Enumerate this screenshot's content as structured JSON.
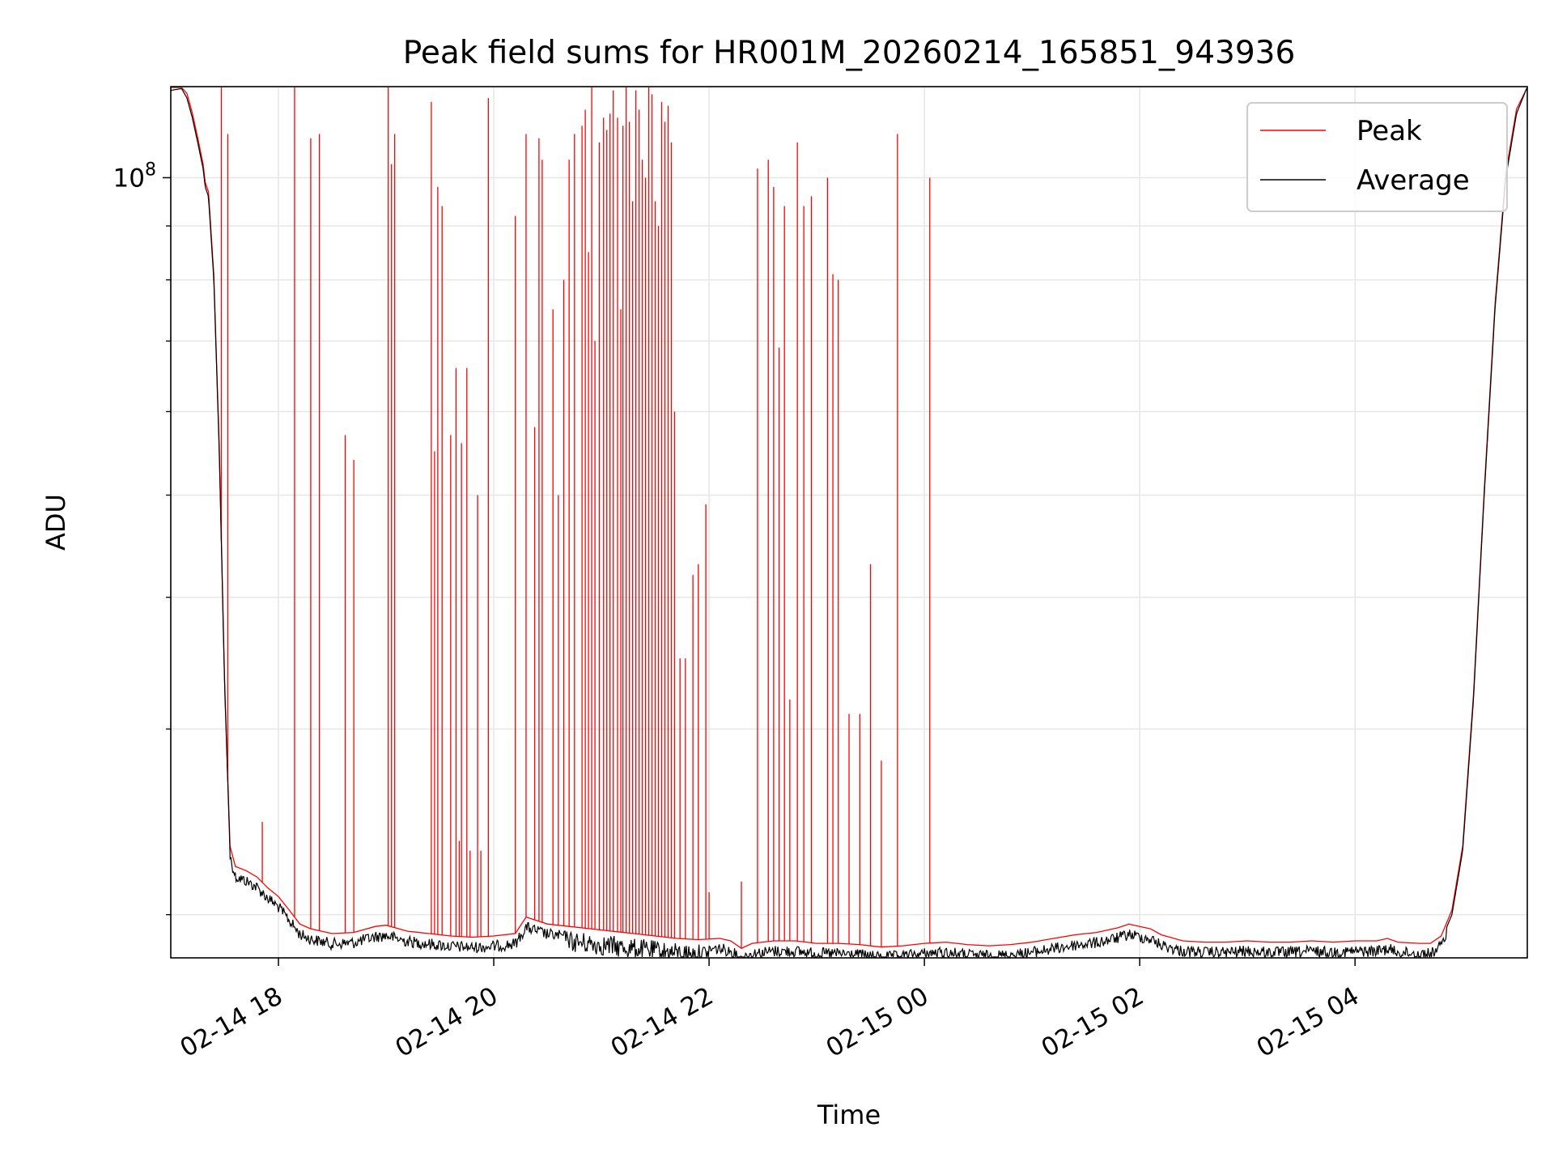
{
  "chart_data": {
    "type": "line",
    "title": "Peak field sums for HR001M_20260214_165851_943936",
    "xlabel": "Time",
    "ylabel": "ADU",
    "yscale": "log",
    "x_unit": "hours since 2026-02-14 00:00",
    "xlim": [
      17.0,
      29.6
    ],
    "ylim": [
      18200000,
      122000000
    ],
    "grid": true,
    "x_ticks": [
      {
        "value": 18,
        "label": "02-14 18"
      },
      {
        "value": 20,
        "label": "02-14 20"
      },
      {
        "value": 22,
        "label": "02-14 22"
      },
      {
        "value": 24,
        "label": "02-15 00"
      },
      {
        "value": 26,
        "label": "02-15 02"
      },
      {
        "value": 28,
        "label": "02-15 04"
      }
    ],
    "y_ticks_major": [
      {
        "value": 100000000,
        "base": "10",
        "exponent": "8"
      }
    ],
    "y_ticks_minor": [
      20000000,
      30000000,
      40000000,
      50000000,
      60000000,
      70000000,
      80000000,
      90000000
    ],
    "legend": {
      "position": "upper right",
      "entries": [
        {
          "label": "Peak",
          "color": "#ff0000"
        },
        {
          "label": "Average",
          "color": "#000000"
        }
      ]
    },
    "series": [
      {
        "name": "Average",
        "color": "#000000",
        "points": [
          [
            17.0,
            121000000
          ],
          [
            17.1,
            121500000
          ],
          [
            17.15,
            119000000
          ],
          [
            17.2,
            114000000
          ],
          [
            17.25,
            108000000
          ],
          [
            17.3,
            102000000
          ],
          [
            17.32,
            98000000
          ],
          [
            17.35,
            96000000
          ],
          [
            17.4,
            80000000
          ],
          [
            17.45,
            55000000
          ],
          [
            17.5,
            33000000
          ],
          [
            17.55,
            23000000
          ],
          [
            17.6,
            22000000
          ],
          [
            17.7,
            21800000
          ],
          [
            17.8,
            21500000
          ],
          [
            17.9,
            21000000
          ],
          [
            18.0,
            20600000
          ],
          [
            18.1,
            20000000
          ],
          [
            18.2,
            19400000
          ],
          [
            18.3,
            19200000
          ],
          [
            18.5,
            19000000
          ],
          [
            18.7,
            19050000
          ],
          [
            18.9,
            19300000
          ],
          [
            19.0,
            19350000
          ],
          [
            19.2,
            19100000
          ],
          [
            19.4,
            19000000
          ],
          [
            19.6,
            18900000
          ],
          [
            19.8,
            18850000
          ],
          [
            20.0,
            18900000
          ],
          [
            20.2,
            19000000
          ],
          [
            20.3,
            19700000
          ],
          [
            20.5,
            19400000
          ],
          [
            20.7,
            19300000
          ],
          [
            20.9,
            19200000
          ],
          [
            21.1,
            19100000
          ],
          [
            21.3,
            19000000
          ],
          [
            21.5,
            18900000
          ],
          [
            21.7,
            18800000
          ],
          [
            21.9,
            18750000
          ],
          [
            22.1,
            18800000
          ],
          [
            22.2,
            18700000
          ],
          [
            22.3,
            18400000
          ],
          [
            22.4,
            18600000
          ],
          [
            22.6,
            18700000
          ],
          [
            22.8,
            18700000
          ],
          [
            23.0,
            18600000
          ],
          [
            23.2,
            18600000
          ],
          [
            23.4,
            18550000
          ],
          [
            23.6,
            18450000
          ],
          [
            23.8,
            18500000
          ],
          [
            24.0,
            18600000
          ],
          [
            24.2,
            18650000
          ],
          [
            24.4,
            18550000
          ],
          [
            24.6,
            18500000
          ],
          [
            24.8,
            18550000
          ],
          [
            25.0,
            18650000
          ],
          [
            25.2,
            18800000
          ],
          [
            25.4,
            18950000
          ],
          [
            25.6,
            19050000
          ],
          [
            25.8,
            19250000
          ],
          [
            25.9,
            19400000
          ],
          [
            26.0,
            19300000
          ],
          [
            26.1,
            19200000
          ],
          [
            26.2,
            18950000
          ],
          [
            26.4,
            18700000
          ],
          [
            26.6,
            18650000
          ],
          [
            26.8,
            18650000
          ],
          [
            27.0,
            18700000
          ],
          [
            27.2,
            18650000
          ],
          [
            27.4,
            18650000
          ],
          [
            27.6,
            18700000
          ],
          [
            27.8,
            18650000
          ],
          [
            28.0,
            18700000
          ],
          [
            28.2,
            18700000
          ],
          [
            28.3,
            18800000
          ],
          [
            28.4,
            18650000
          ],
          [
            28.6,
            18600000
          ],
          [
            28.7,
            18600000
          ],
          [
            28.8,
            18900000
          ],
          [
            28.9,
            20000000
          ],
          [
            29.0,
            23000000
          ],
          [
            29.1,
            32000000
          ],
          [
            29.2,
            50000000
          ],
          [
            29.3,
            75000000
          ],
          [
            29.4,
            100000000
          ],
          [
            29.5,
            115000000
          ],
          [
            29.6,
            122000000
          ]
        ]
      },
      {
        "name": "Peak",
        "color": "#ff0000",
        "spikes": [
          [
            17.47,
            122000000
          ],
          [
            17.53,
            110000000
          ],
          [
            17.85,
            24500000
          ],
          [
            18.15,
            122000000
          ],
          [
            18.3,
            109000000
          ],
          [
            18.38,
            110000000
          ],
          [
            18.62,
            57000000
          ],
          [
            18.7,
            54000000
          ],
          [
            19.02,
            122000000
          ],
          [
            19.05,
            103000000
          ],
          [
            19.08,
            110000000
          ],
          [
            19.42,
            118000000
          ],
          [
            19.45,
            55000000
          ],
          [
            19.48,
            98000000
          ],
          [
            19.52,
            94000000
          ],
          [
            19.6,
            57000000
          ],
          [
            19.65,
            66000000
          ],
          [
            19.68,
            23500000
          ],
          [
            19.7,
            56000000
          ],
          [
            19.75,
            66000000
          ],
          [
            19.78,
            23000000
          ],
          [
            19.85,
            50000000
          ],
          [
            19.88,
            23000000
          ],
          [
            19.95,
            119000000
          ],
          [
            20.2,
            92000000
          ],
          [
            20.3,
            110000000
          ],
          [
            20.38,
            58000000
          ],
          [
            20.42,
            109000000
          ],
          [
            20.45,
            104000000
          ],
          [
            20.55,
            75000000
          ],
          [
            20.6,
            50000000
          ],
          [
            20.65,
            80000000
          ],
          [
            20.7,
            104000000
          ],
          [
            20.75,
            110000000
          ],
          [
            20.82,
            112000000
          ],
          [
            20.85,
            116000000
          ],
          [
            20.88,
            85000000
          ],
          [
            20.91,
            122000000
          ],
          [
            20.94,
            70000000
          ],
          [
            20.98,
            108000000
          ],
          [
            21.02,
            114000000
          ],
          [
            21.05,
            111000000
          ],
          [
            21.08,
            115000000
          ],
          [
            21.11,
            121000000
          ],
          [
            21.15,
            114000000
          ],
          [
            21.18,
            75000000
          ],
          [
            21.2,
            112000000
          ],
          [
            21.23,
            122000000
          ],
          [
            21.26,
            113000000
          ],
          [
            21.29,
            95000000
          ],
          [
            21.32,
            121000000
          ],
          [
            21.35,
            116000000
          ],
          [
            21.38,
            104000000
          ],
          [
            21.41,
            100000000
          ],
          [
            21.44,
            122000000
          ],
          [
            21.47,
            120000000
          ],
          [
            21.5,
            95000000
          ],
          [
            21.53,
            90000000
          ],
          [
            21.56,
            118000000
          ],
          [
            21.59,
            113000000
          ],
          [
            21.62,
            117000000
          ],
          [
            21.65,
            108000000
          ],
          [
            21.68,
            60000000
          ],
          [
            21.73,
            35000000
          ],
          [
            21.78,
            35000000
          ],
          [
            21.85,
            42000000
          ],
          [
            21.9,
            43000000
          ],
          [
            21.97,
            49000000
          ],
          [
            22.0,
            21000000
          ],
          [
            22.3,
            21500000
          ],
          [
            22.45,
            102000000
          ],
          [
            22.55,
            104000000
          ],
          [
            22.6,
            98000000
          ],
          [
            22.65,
            69000000
          ],
          [
            22.7,
            94000000
          ],
          [
            22.75,
            32000000
          ],
          [
            22.82,
            108000000
          ],
          [
            22.88,
            94000000
          ],
          [
            22.95,
            96000000
          ],
          [
            23.1,
            100000000
          ],
          [
            23.15,
            81000000
          ],
          [
            23.2,
            80000000
          ],
          [
            23.3,
            31000000
          ],
          [
            23.4,
            31000000
          ],
          [
            23.5,
            43000000
          ],
          [
            23.6,
            28000000
          ],
          [
            23.75,
            110000000
          ],
          [
            24.05,
            100000000
          ]
        ]
      }
    ]
  }
}
